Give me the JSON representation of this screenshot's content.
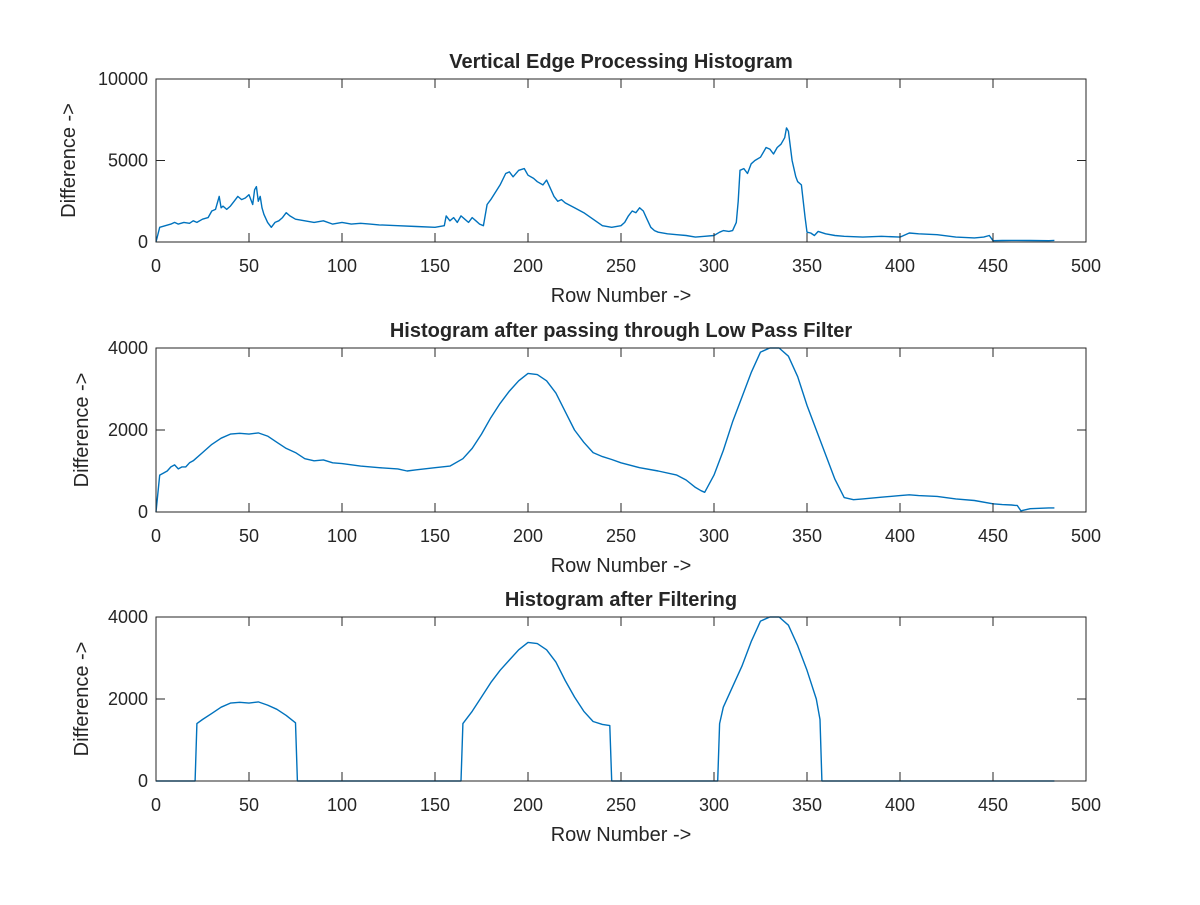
{
  "figure": {
    "background": "#ffffff",
    "axis_color": "#262626",
    "line_color": "#0072BD"
  },
  "chart_data": [
    {
      "type": "line",
      "title": "Vertical Edge Processing Histogram",
      "xlabel": "Row Number ->",
      "ylabel": "Difference ->",
      "xlim": [
        0,
        500
      ],
      "ylim": [
        0,
        10000
      ],
      "xticks": [
        0,
        50,
        100,
        150,
        200,
        250,
        300,
        350,
        400,
        450,
        500
      ],
      "yticks": [
        0,
        5000,
        10000
      ],
      "grid": false,
      "series": [
        {
          "color": "#0072BD",
          "x": [
            0,
            2,
            5,
            8,
            10,
            12,
            15,
            18,
            20,
            22,
            25,
            28,
            30,
            32,
            34,
            35,
            36,
            38,
            40,
            42,
            44,
            46,
            48,
            50,
            52,
            53,
            54,
            55,
            56,
            57,
            58,
            60,
            62,
            64,
            66,
            68,
            70,
            72,
            75,
            80,
            85,
            90,
            95,
            100,
            105,
            110,
            115,
            120,
            130,
            140,
            150,
            155,
            156,
            158,
            160,
            162,
            164,
            166,
            168,
            170,
            172,
            174,
            176,
            178,
            180,
            185,
            188,
            190,
            192,
            195,
            198,
            200,
            203,
            205,
            208,
            210,
            212,
            214,
            216,
            218,
            220,
            225,
            230,
            235,
            240,
            245,
            250,
            252,
            254,
            256,
            258,
            260,
            262,
            264,
            266,
            268,
            270,
            275,
            280,
            285,
            290,
            295,
            300,
            303,
            305,
            308,
            310,
            312,
            313,
            314,
            316,
            318,
            320,
            322,
            325,
            328,
            330,
            332,
            334,
            336,
            338,
            339,
            340,
            342,
            344,
            345,
            347,
            349,
            350,
            352,
            354,
            356,
            360,
            365,
            370,
            380,
            390,
            400,
            405,
            410,
            420,
            430,
            440,
            445,
            448,
            450,
            455,
            460,
            470,
            480,
            483
          ],
          "y": [
            0,
            900,
            1000,
            1100,
            1200,
            1100,
            1200,
            1150,
            1300,
            1200,
            1400,
            1500,
            1900,
            2000,
            2800,
            2100,
            2200,
            2000,
            2200,
            2500,
            2800,
            2600,
            2700,
            2900,
            2300,
            3200,
            3400,
            2500,
            2800,
            2100,
            1700,
            1200,
            900,
            1200,
            1300,
            1500,
            1800,
            1600,
            1400,
            1300,
            1200,
            1300,
            1100,
            1200,
            1100,
            1150,
            1100,
            1050,
            1000,
            950,
            900,
            1000,
            1600,
            1300,
            1500,
            1200,
            1600,
            1400,
            1200,
            1500,
            1300,
            1100,
            1000,
            2300,
            2600,
            3500,
            4200,
            4300,
            4000,
            4400,
            4500,
            4100,
            3900,
            3700,
            3500,
            3800,
            3300,
            2800,
            2500,
            2600,
            2400,
            2100,
            1800,
            1400,
            1000,
            900,
            1000,
            1200,
            1600,
            1900,
            1800,
            2100,
            1900,
            1400,
            900,
            700,
            600,
            500,
            450,
            400,
            300,
            350,
            400,
            600,
            700,
            650,
            700,
            1200,
            2500,
            4400,
            4500,
            4200,
            4800,
            5000,
            5200,
            5800,
            5700,
            5400,
            5800,
            6000,
            6400,
            7000,
            6800,
            5000,
            4000,
            3700,
            3500,
            1500,
            600,
            550,
            400,
            650,
            500,
            400,
            350,
            300,
            350,
            300,
            550,
            500,
            450,
            300,
            250,
            300,
            400,
            80,
            90,
            100,
            90,
            80,
            100
          ]
        }
      ]
    },
    {
      "type": "line",
      "title": "Histogram after passing through Low Pass Filter",
      "xlabel": "Row Number ->",
      "ylabel": "Difference ->",
      "xlim": [
        0,
        500
      ],
      "ylim": [
        0,
        4000
      ],
      "xticks": [
        0,
        50,
        100,
        150,
        200,
        250,
        300,
        350,
        400,
        450,
        500
      ],
      "yticks": [
        0,
        2000,
        4000
      ],
      "grid": false,
      "series": [
        {
          "color": "#0072BD",
          "x": [
            0,
            2,
            4,
            6,
            8,
            10,
            12,
            14,
            16,
            18,
            20,
            25,
            30,
            35,
            40,
            45,
            50,
            55,
            60,
            65,
            70,
            75,
            80,
            85,
            90,
            95,
            100,
            110,
            120,
            130,
            135,
            140,
            150,
            158,
            165,
            170,
            175,
            180,
            185,
            190,
            195,
            200,
            205,
            210,
            215,
            220,
            225,
            230,
            235,
            240,
            245,
            250,
            260,
            270,
            280,
            285,
            290,
            293,
            295,
            300,
            305,
            310,
            315,
            320,
            325,
            330,
            335,
            340,
            345,
            350,
            355,
            360,
            365,
            370,
            375,
            380,
            390,
            400,
            405,
            410,
            420,
            430,
            440,
            450,
            455,
            460,
            462,
            463,
            465,
            470,
            475,
            480,
            483
          ],
          "y": [
            0,
            900,
            950,
            1000,
            1100,
            1150,
            1050,
            1100,
            1100,
            1200,
            1250,
            1450,
            1650,
            1800,
            1900,
            1920,
            1900,
            1930,
            1850,
            1700,
            1550,
            1450,
            1300,
            1250,
            1270,
            1200,
            1180,
            1120,
            1080,
            1050,
            1000,
            1030,
            1080,
            1120,
            1300,
            1550,
            1900,
            2300,
            2650,
            2950,
            3200,
            3380,
            3350,
            3200,
            2900,
            2450,
            2000,
            1700,
            1450,
            1350,
            1280,
            1200,
            1080,
            1000,
            900,
            780,
            600,
            520,
            480,
            900,
            1500,
            2200,
            2800,
            3400,
            3900,
            4000,
            4000,
            3800,
            3300,
            2600,
            2000,
            1400,
            800,
            350,
            300,
            320,
            360,
            400,
            420,
            400,
            380,
            320,
            280,
            200,
            180,
            170,
            160,
            160,
            30,
            80,
            90,
            100,
            100
          ]
        }
      ]
    },
    {
      "type": "line",
      "title": "Histogram after Filtering",
      "xlabel": "Row Number ->",
      "ylabel": "Difference ->",
      "xlim": [
        0,
        500
      ],
      "ylim": [
        0,
        4000
      ],
      "xticks": [
        0,
        50,
        100,
        150,
        200,
        250,
        300,
        350,
        400,
        450,
        500
      ],
      "yticks": [
        0,
        2000,
        4000
      ],
      "grid": false,
      "series": [
        {
          "color": "#0072BD",
          "x": [
            0,
            21,
            22,
            25,
            30,
            35,
            40,
            45,
            50,
            55,
            60,
            65,
            70,
            75,
            76,
            164,
            165,
            170,
            175,
            180,
            185,
            190,
            195,
            200,
            205,
            210,
            215,
            220,
            225,
            230,
            235,
            240,
            244,
            245,
            302,
            303,
            305,
            310,
            315,
            320,
            325,
            330,
            335,
            340,
            345,
            350,
            355,
            357,
            358,
            483
          ],
          "y": [
            0,
            0,
            1400,
            1500,
            1650,
            1800,
            1900,
            1920,
            1900,
            1930,
            1850,
            1750,
            1600,
            1420,
            0,
            0,
            1400,
            1700,
            2050,
            2400,
            2700,
            2950,
            3200,
            3380,
            3350,
            3200,
            2900,
            2450,
            2050,
            1700,
            1450,
            1380,
            1350,
            0,
            0,
            1400,
            1800,
            2300,
            2800,
            3400,
            3900,
            4000,
            4000,
            3800,
            3300,
            2700,
            2000,
            1500,
            0,
            0
          ]
        }
      ]
    }
  ]
}
